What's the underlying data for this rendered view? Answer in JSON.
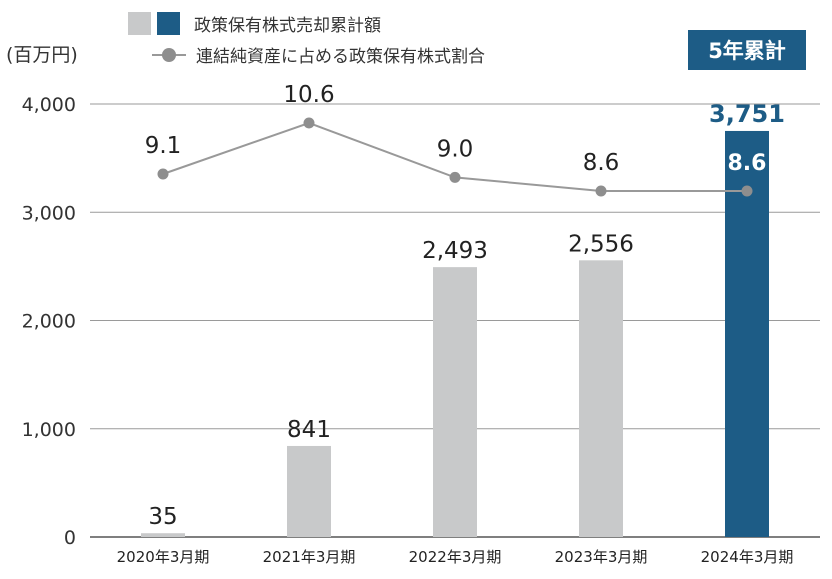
{
  "legend": {
    "bar_label": "政策保有株式売却累計額",
    "line_label": "連結純資産に占める政策保有株式割合"
  },
  "unit_label": "(百万円)",
  "badge_label": "5年累計",
  "chart_data": {
    "type": "bar",
    "categories": [
      "2020年3月期",
      "2021年3月期",
      "2022年3月期",
      "2023年3月期",
      "2024年3月期"
    ],
    "series": [
      {
        "name": "政策保有株式売却累計額",
        "values": [
          35,
          841,
          2493,
          2556,
          3751
        ]
      },
      {
        "name": "連結純資産に占める政策保有株式割合",
        "type": "line",
        "values": [
          9.1,
          10.6,
          9.0,
          8.6,
          8.6
        ]
      }
    ],
    "value_labels": [
      "35",
      "841",
      "2,493",
      "2,556",
      "3,751"
    ],
    "line_labels": [
      "9.1",
      "10.6",
      "9.0",
      "8.6",
      "8.6"
    ],
    "ylim": [
      0,
      4000
    ],
    "yticks": [
      0,
      1000,
      2000,
      3000,
      4000
    ],
    "ytick_labels": [
      "0",
      "1,000",
      "2,000",
      "3,000",
      "4,000"
    ],
    "grid": true,
    "colors": {
      "bar": "#c8c9ca",
      "highlight": "#1d5c86",
      "line": "#999999",
      "marker": "#8e8e8e"
    },
    "highlight_index": 4
  }
}
